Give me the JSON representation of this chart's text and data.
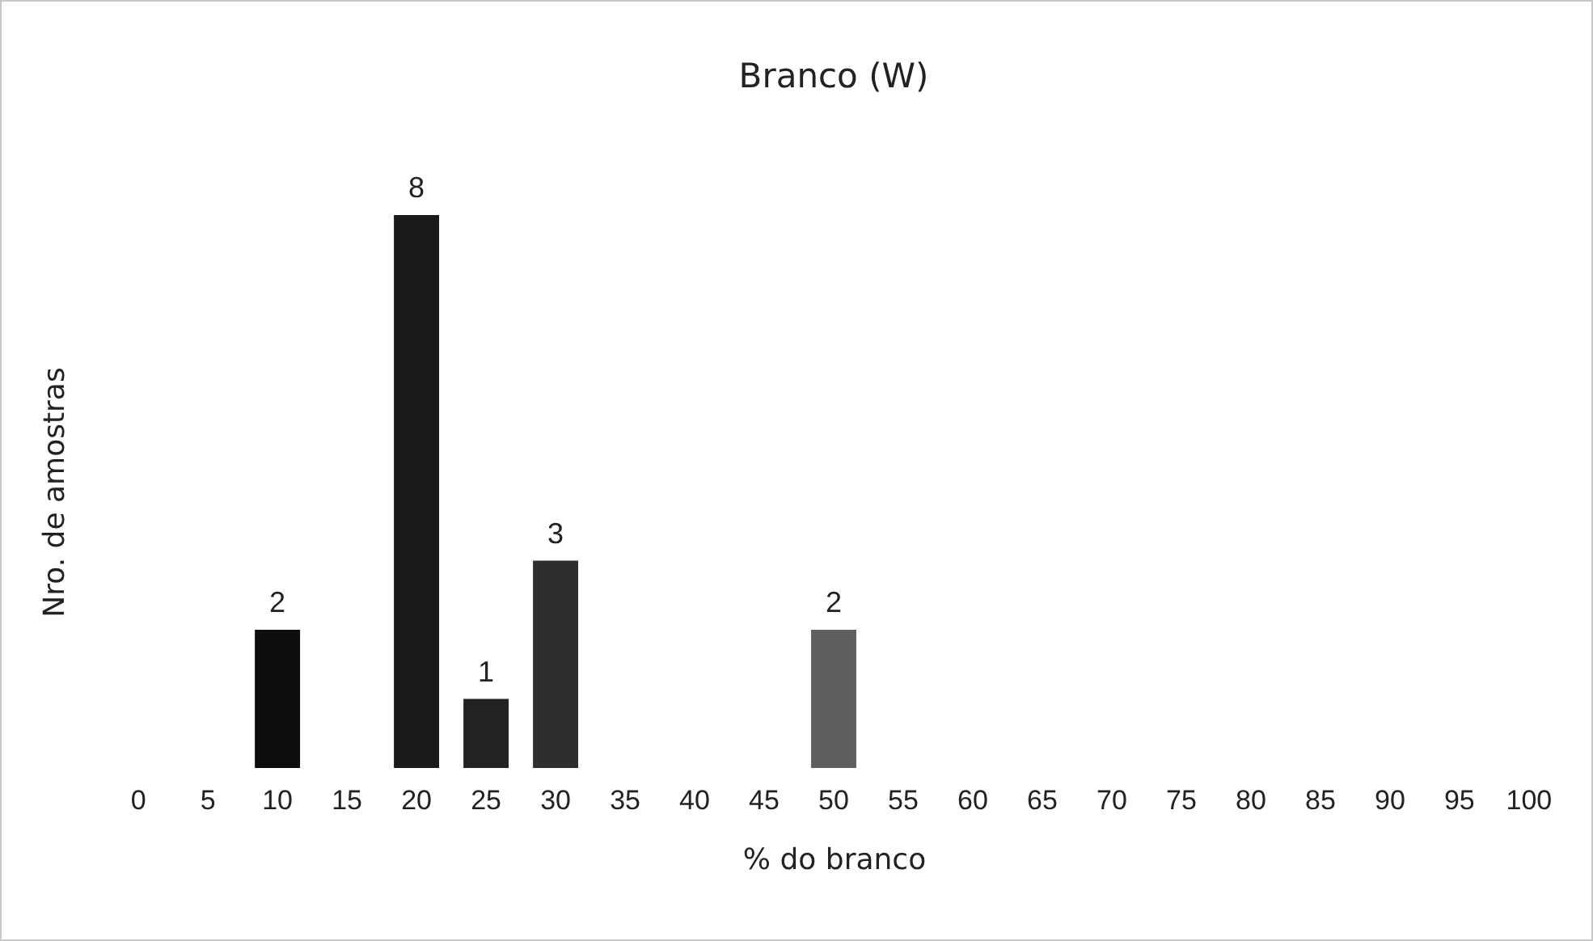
{
  "chart_data": {
    "type": "bar",
    "title": "Branco (W)",
    "xlabel": "% do branco",
    "ylabel": "Nro. de amostras",
    "categories": [
      "0",
      "5",
      "10",
      "15",
      "20",
      "25",
      "30",
      "35",
      "40",
      "45",
      "50",
      "55",
      "60",
      "65",
      "70",
      "75",
      "80",
      "85",
      "90",
      "95",
      "100"
    ],
    "values": [
      null,
      null,
      2,
      null,
      8,
      1,
      3,
      null,
      null,
      null,
      2,
      null,
      null,
      null,
      null,
      null,
      null,
      null,
      null,
      null,
      null
    ],
    "colors": [
      null,
      null,
      "#0d0d0d",
      null,
      "#1a1a1a",
      "#222222",
      "#2e2e2e",
      null,
      null,
      null,
      "#5f5f5f",
      null,
      null,
      null,
      null,
      null,
      null,
      null,
      null,
      null,
      null
    ],
    "data_labels": true
  }
}
